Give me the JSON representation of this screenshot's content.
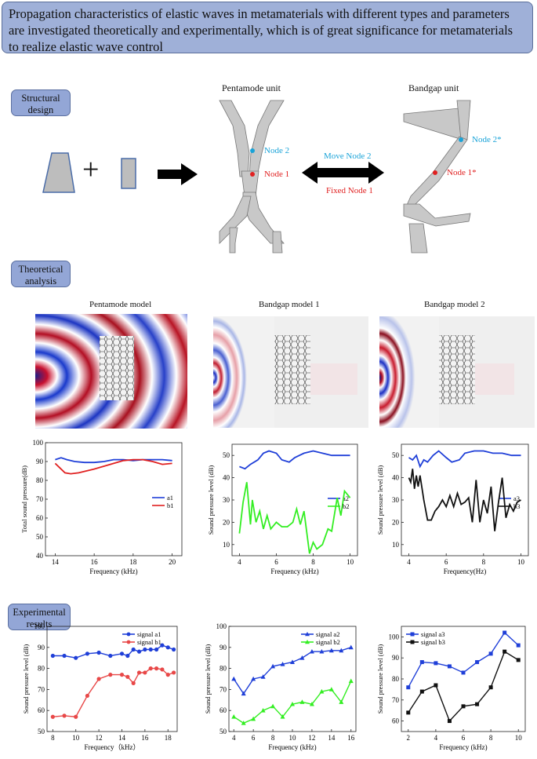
{
  "banner": {
    "text": "Propagation characteristics of elastic waves in metamaterials with different types and parameters are investigated theoretically and experimentally, which is of great significance for metamaterials to realize elastic wave control"
  },
  "sections": {
    "structural": "Structural\ndesign",
    "theoretical": "Theoretical\nanalysis",
    "experimental": "Experimental\nresults"
  },
  "structural_design": {
    "operator": "+",
    "pentamode_title": "Pentamode unit",
    "bandgap_title": "Bandgap unit",
    "node2": "Node 2",
    "node1": "Node 1",
    "node2_star": "Node 2*",
    "node1_star": "Node 1*",
    "move_label": "Move Node 2",
    "fixed_label": "Fixed Node 1"
  },
  "field_titles": [
    "Pentamode model",
    "Bandgap model 1",
    "Bandgap model 2"
  ],
  "colors": {
    "blue": "#1f3fd8",
    "red": "#e02020",
    "green": "#33ee22",
    "black": "#111111",
    "cyan": "#19a3d8"
  },
  "chart_data": [
    {
      "type": "line",
      "xlabel": "Frequency (kHz)",
      "ylabel": "Total sound pressure(dB)",
      "xlim": [
        13.5,
        20.5
      ],
      "ylim": [
        40,
        100
      ],
      "xticks": [
        14,
        16,
        18,
        20
      ],
      "yticks": [
        40,
        50,
        60,
        70,
        80,
        90,
        100
      ],
      "legend": "right",
      "series": [
        {
          "name": "a1",
          "color": "#1f3fd8",
          "x": [
            14,
            14.3,
            14.6,
            15,
            15.5,
            16,
            16.5,
            17,
            17.5,
            18,
            18.5,
            19,
            19.5,
            20
          ],
          "y": [
            91,
            92,
            91,
            90,
            89.5,
            89.5,
            90,
            91,
            91,
            90.5,
            91,
            91,
            91,
            90.5
          ]
        },
        {
          "name": "b1",
          "color": "#e02020",
          "x": [
            14,
            14.2,
            14.5,
            14.8,
            15.2,
            15.6,
            16,
            16.5,
            17,
            17.5,
            18,
            18.5,
            19,
            19.5,
            20
          ],
          "y": [
            89,
            87,
            84,
            83.5,
            84,
            85,
            86,
            87.5,
            89,
            90.5,
            91,
            91,
            90,
            88.5,
            89
          ]
        }
      ]
    },
    {
      "type": "line",
      "xlabel": "Frequency (kHz)",
      "ylabel": "Sound pressure level (dB)",
      "xlim": [
        3.6,
        10.4
      ],
      "ylim": [
        5,
        55
      ],
      "xticks": [
        4,
        6,
        8,
        10
      ],
      "yticks": [
        10,
        20,
        30,
        40,
        50
      ],
      "legend": "right",
      "series": [
        {
          "name": "a2",
          "color": "#1f3fd8",
          "x": [
            4,
            4.3,
            4.6,
            5,
            5.3,
            5.6,
            6,
            6.3,
            6.7,
            7,
            7.5,
            8,
            8.5,
            9,
            9.5,
            10
          ],
          "y": [
            45,
            44,
            46,
            48,
            51,
            52,
            51,
            48,
            47,
            49,
            51,
            52,
            51,
            50,
            50,
            50
          ]
        },
        {
          "name": "b2",
          "color": "#33ee22",
          "x": [
            4,
            4.2,
            4.4,
            4.6,
            4.7,
            4.9,
            5.1,
            5.3,
            5.5,
            5.7,
            6,
            6.3,
            6.6,
            6.9,
            7.1,
            7.3,
            7.5,
            7.8,
            8,
            8.2,
            8.5,
            8.8,
            9,
            9.3,
            9.5,
            9.7,
            10
          ],
          "y": [
            15,
            29,
            38,
            19,
            30,
            20,
            25,
            17,
            23,
            17,
            20,
            18,
            18,
            20,
            26,
            19,
            25,
            6,
            11,
            8,
            10,
            17,
            16,
            31,
            23,
            34,
            31
          ]
        }
      ]
    },
    {
      "type": "line",
      "xlabel": "Frequency(Hz)",
      "ylabel": "Sound pressure level (dB)",
      "xlim": [
        3.6,
        10.4
      ],
      "ylim": [
        5,
        55
      ],
      "xticks": [
        4,
        6,
        8,
        10
      ],
      "yticks": [
        10,
        20,
        30,
        40,
        50
      ],
      "legend": "right",
      "series": [
        {
          "name": "a3",
          "color": "#1f3fd8",
          "x": [
            4,
            4.2,
            4.4,
            4.6,
            4.8,
            5,
            5.3,
            5.6,
            6,
            6.3,
            6.7,
            7,
            7.5,
            8,
            8.5,
            9,
            9.5,
            10
          ],
          "y": [
            49,
            48,
            50,
            45,
            48,
            47,
            50,
            52,
            49,
            47,
            48,
            51,
            52,
            52,
            51,
            51,
            50,
            50
          ]
        },
        {
          "name": "b3",
          "color": "#111111",
          "x": [
            4,
            4.1,
            4.2,
            4.3,
            4.4,
            4.5,
            4.6,
            4.8,
            5,
            5.2,
            5.4,
            5.6,
            5.8,
            6,
            6.2,
            6.4,
            6.6,
            6.8,
            7,
            7.2,
            7.4,
            7.6,
            7.8,
            8,
            8.2,
            8.4,
            8.6,
            8.8,
            9,
            9.2,
            9.4,
            9.6,
            9.8,
            10
          ],
          "y": [
            40,
            38,
            44,
            35,
            41,
            36,
            41,
            30,
            21,
            21,
            25,
            27,
            30,
            27,
            32,
            27,
            33,
            28,
            29,
            31,
            20,
            39,
            20,
            30,
            24,
            36,
            16,
            29,
            40,
            22,
            28,
            25,
            29,
            30
          ]
        }
      ]
    },
    {
      "type": "line",
      "xlabel": "Frequency（kHz）",
      "ylabel": "Sound pressure level (dB)",
      "xlim": [
        7.5,
        18.8
      ],
      "ylim": [
        50,
        100
      ],
      "xticks": [
        8,
        10,
        12,
        14,
        16,
        18
      ],
      "yticks": [
        50,
        60,
        70,
        80,
        90,
        100
      ],
      "legend": "top-right",
      "series": [
        {
          "name": "signal a1",
          "color": "#1f3fd8",
          "marker": "circle",
          "x": [
            8,
            9,
            10,
            11,
            12,
            13,
            14,
            14.5,
            15,
            15.5,
            16,
            16.5,
            17,
            17.5,
            18,
            18.5
          ],
          "y": [
            86,
            86,
            85,
            87,
            87.5,
            86,
            87,
            86,
            89,
            88,
            89,
            89,
            89,
            91,
            90,
            89
          ]
        },
        {
          "name": "signal b1",
          "color": "#e84848",
          "marker": "circle",
          "x": [
            8,
            9,
            10,
            11,
            12,
            13,
            14,
            14.5,
            15,
            15.5,
            16,
            16.5,
            17,
            17.5,
            18,
            18.5
          ],
          "y": [
            57,
            57.5,
            57,
            67,
            75,
            77,
            77,
            76,
            73,
            78,
            78,
            80,
            80,
            79.5,
            77,
            78
          ]
        }
      ]
    },
    {
      "type": "line",
      "xlabel": "Frequency (kHz)",
      "ylabel": "Sound pressure level (dB)",
      "xlim": [
        3.5,
        16.5
      ],
      "ylim": [
        50,
        100
      ],
      "xticks": [
        4,
        6,
        8,
        10,
        12,
        14,
        16
      ],
      "yticks": [
        50,
        60,
        70,
        80,
        90,
        100
      ],
      "legend": "top-right",
      "series": [
        {
          "name": "signal a2",
          "color": "#1f3fd8",
          "marker": "triangle",
          "x": [
            4,
            5,
            6,
            7,
            8,
            9,
            10,
            11,
            12,
            13,
            14,
            15,
            16
          ],
          "y": [
            75,
            68,
            75,
            76,
            81,
            82,
            83,
            85,
            88,
            88,
            88.5,
            88.5,
            90
          ]
        },
        {
          "name": "signal b2",
          "color": "#33ee22",
          "marker": "triangle",
          "x": [
            4,
            5,
            6,
            7,
            8,
            9,
            10,
            11,
            12,
            13,
            14,
            15,
            16
          ],
          "y": [
            57,
            54,
            56,
            60,
            62,
            57,
            63,
            64,
            63,
            69,
            70,
            64,
            74
          ]
        }
      ]
    },
    {
      "type": "line",
      "xlabel": "Frequency (kHz)",
      "ylabel": "Sound pressure level (dB)",
      "xlim": [
        1.5,
        10.5
      ],
      "ylim": [
        55,
        105
      ],
      "xticks": [
        2,
        4,
        6,
        8,
        10
      ],
      "yticks": [
        60,
        70,
        80,
        90,
        100
      ],
      "legend": "top-left",
      "series": [
        {
          "name": "signal a3",
          "color": "#1f3fd8",
          "marker": "square",
          "x": [
            2,
            3,
            4,
            5,
            6,
            7,
            8,
            9,
            10
          ],
          "y": [
            76,
            88,
            87.5,
            86,
            83,
            88,
            92,
            102,
            96
          ]
        },
        {
          "name": "signal b3",
          "color": "#111111",
          "marker": "square",
          "x": [
            2,
            3,
            4,
            5,
            6,
            7,
            8,
            9,
            10
          ],
          "y": [
            64,
            74,
            77,
            60,
            67,
            68,
            76,
            93,
            89
          ]
        }
      ]
    }
  ]
}
